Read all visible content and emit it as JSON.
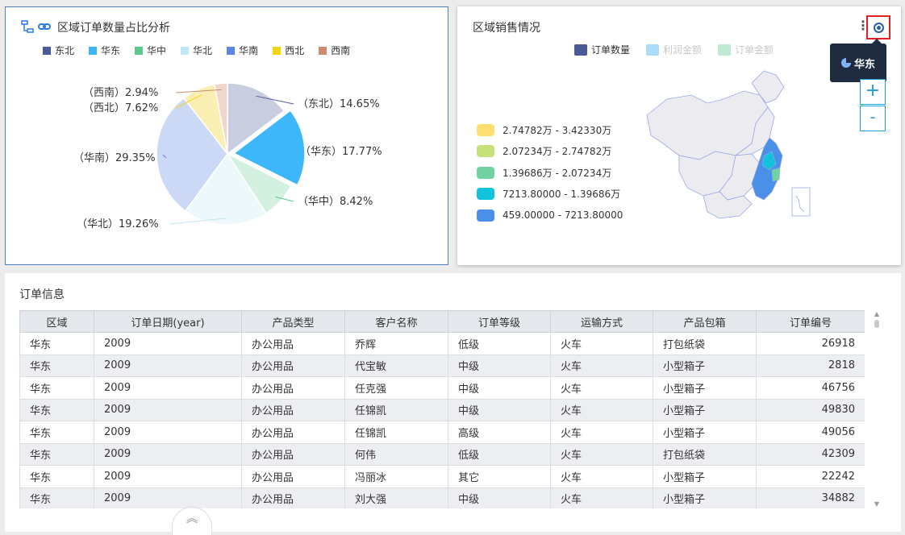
{
  "pie_panel": {
    "title": "区域订单数量占比分析",
    "icons": [
      "hierarchy-icon",
      "link-icon"
    ]
  },
  "chart_data": {
    "type": "pie",
    "title": "区域订单数量占比分析",
    "legend_position": "top",
    "categories": [
      "东北",
      "华东",
      "华中",
      "华北",
      "华南",
      "西北",
      "西南"
    ],
    "colors": [
      "#4a5b9a",
      "#3fb4f7",
      "#5cc98a",
      "#bfe8f3",
      "#5b86e5",
      "#f4d511",
      "#d08b70"
    ],
    "slice_colors": [
      "#c9cde0",
      "#3db6fa",
      "#d4f0e1",
      "#ecf8fb",
      "#ccd9f6",
      "#faefb3",
      "#f0d7cd"
    ],
    "values": [
      14.65,
      17.77,
      8.42,
      19.26,
      29.35,
      7.62,
      2.94
    ],
    "labels": [
      "（东北）14.65%",
      "（华东）17.77%",
      "（华中）8.42%",
      "（华北）19.26%",
      "（华南）29.35%",
      "（西北）7.62%",
      "（西南）2.94%"
    ],
    "highlighted": "华东"
  },
  "map_panel": {
    "title": "区域销售情况",
    "legend": [
      {
        "label": "订单数量",
        "color": "#4a5b9a"
      },
      {
        "label": "利润金额",
        "color": "#a9ddfb"
      },
      {
        "label": "订单金额",
        "color": "#bfe9d3"
      }
    ],
    "visual_map": [
      {
        "label": "2.74782万 - 3.42330万",
        "color": "#fddf6f"
      },
      {
        "label": "2.07234万 - 2.74782万",
        "color": "#c5e27a"
      },
      {
        "label": "1.39686万 - 2.07234万",
        "color": "#71d2a1"
      },
      {
        "label": "7213.80000 - 1.39686万",
        "color": "#13c3dc"
      },
      {
        "label": "459.00000 - 7213.80000",
        "color": "#4a90e8"
      }
    ],
    "tooltip": "华东",
    "zoom_in": "+",
    "zoom_out": "-"
  },
  "table": {
    "title": "订单信息",
    "columns": [
      "区域",
      "订单日期(year)",
      "产品类型",
      "客户名称",
      "订单等级",
      "运输方式",
      "产品包箱",
      "订单编号"
    ],
    "rows": [
      [
        "华东",
        "2009",
        "办公用品",
        "乔辉",
        "低级",
        "火车",
        "打包纸袋",
        "26918"
      ],
      [
        "华东",
        "2009",
        "办公用品",
        "代宝敏",
        "中级",
        "火车",
        "小型箱子",
        "2818"
      ],
      [
        "华东",
        "2009",
        "办公用品",
        "任克强",
        "中级",
        "火车",
        "小型箱子",
        "46756"
      ],
      [
        "华东",
        "2009",
        "办公用品",
        "任锦凯",
        "中级",
        "火车",
        "小型箱子",
        "49830"
      ],
      [
        "华东",
        "2009",
        "办公用品",
        "任锦凯",
        "高级",
        "火车",
        "小型箱子",
        "49056"
      ],
      [
        "华东",
        "2009",
        "办公用品",
        "何伟",
        "低级",
        "火车",
        "打包纸袋",
        "42309"
      ],
      [
        "华东",
        "2009",
        "办公用品",
        "冯丽冰",
        "其它",
        "火车",
        "小型箱子",
        "22242"
      ],
      [
        "华东",
        "2009",
        "办公用品",
        "刘大强",
        "中级",
        "火车",
        "小型箱子",
        "34882"
      ]
    ]
  }
}
